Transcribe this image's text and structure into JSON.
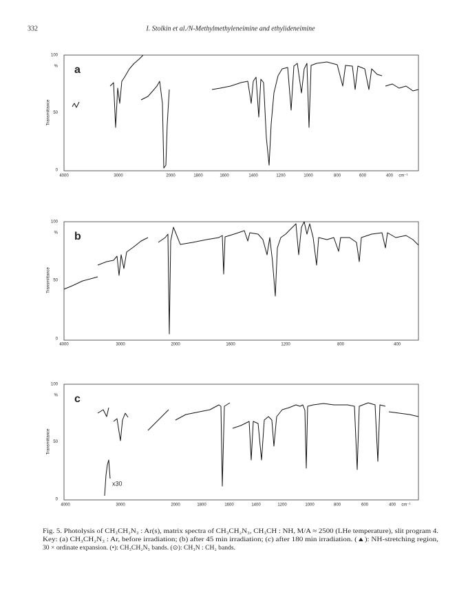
{
  "header": {
    "page_number": "332",
    "running_title": "I. Stolkin et al./N-Methylmethyleneimine and ethylideneimine"
  },
  "figure": {
    "panels": [
      {
        "label": "a",
        "y_axis_title": "Transmittance",
        "y_labels": [
          "100",
          "%",
          "50",
          "0"
        ],
        "x_labels": [
          "4000",
          "3000",
          "2000",
          "1800",
          "1600",
          "1400",
          "1200",
          "1000",
          "800",
          "600",
          "400",
          "cm⁻¹"
        ]
      },
      {
        "label": "b",
        "y_axis_title": "Transmittance",
        "y_labels": [
          "100",
          "%",
          "50",
          "0"
        ],
        "x_labels": [
          "4000",
          "3000",
          "2000",
          "1600",
          "1200",
          "800",
          "400"
        ]
      },
      {
        "label": "c",
        "y_axis_title": "Transmittance",
        "y_labels": [
          "100",
          "%",
          "50",
          "0"
        ],
        "x_labels": [
          "4000",
          "3000",
          "2000",
          "1800",
          "1600",
          "1400",
          "1200",
          "1000",
          "800",
          "600",
          "400",
          "cm⁻¹"
        ],
        "annotation": "x30"
      }
    ],
    "caption": [
      "Fig. 5. Photolysis of CH₃CH₂N₃ : Ar(s), matrix spectra of CH₃CH₂N₃, CH₃CH : NH, M/A ≈ 2500 (LHe temperature), slit program 4.",
      "Key: (a) CH₃CH₂N₃ : Ar, before irradiation; (b) after 45 min irradiation; (c) after 180 min irradiation. (▲): NH-stretching region,",
      "30 × ordinate expansion. (•): CH₃CH₂N₃ bands. (⊙): CH₃N : CH₂ bands."
    ]
  }
}
